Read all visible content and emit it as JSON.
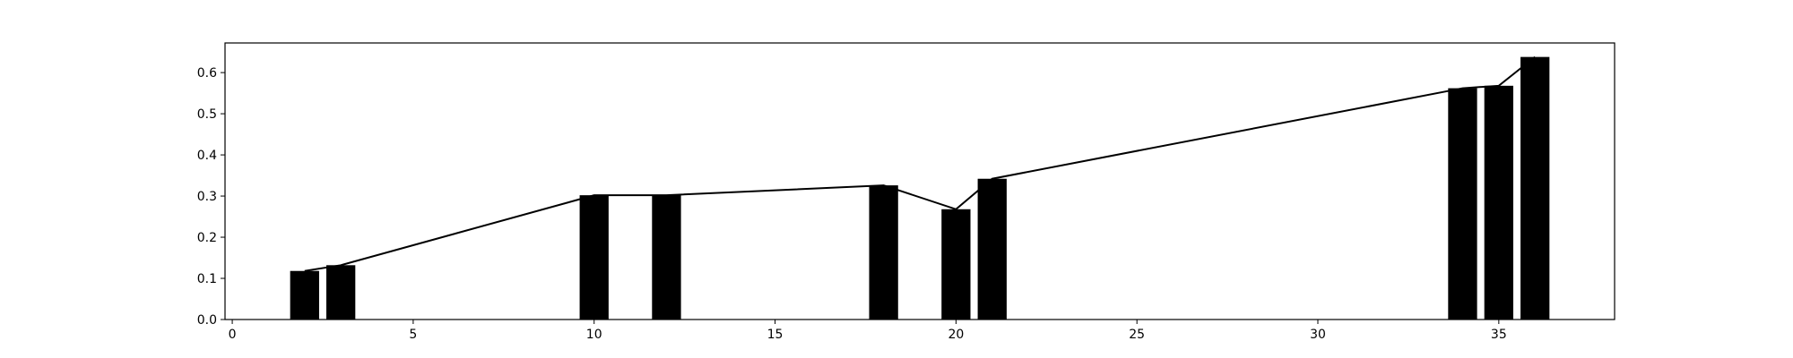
{
  "chart_data": {
    "type": "bar",
    "series": [
      {
        "x": [
          2,
          3,
          10,
          12,
          18,
          20,
          21,
          34,
          35,
          36
        ],
        "values": [
          0.118,
          0.132,
          0.302,
          0.302,
          0.326,
          0.268,
          0.342,
          0.562,
          0.568,
          0.638
        ]
      }
    ],
    "overlay_line": true,
    "xlim": [
      -0.2,
      38.2
    ],
    "ylim": [
      0,
      0.672
    ],
    "xticks": [
      0,
      5,
      10,
      15,
      20,
      25,
      30,
      35
    ],
    "yticks": [
      0.0,
      0.1,
      0.2,
      0.3,
      0.4,
      0.5,
      0.6
    ],
    "xtick_labels": [
      "0",
      "5",
      "10",
      "15",
      "20",
      "25",
      "30",
      "35"
    ],
    "ytick_labels": [
      "0.0",
      "0.1",
      "0.2",
      "0.3",
      "0.4",
      "0.5",
      "0.6"
    ],
    "title": "",
    "xlabel": "",
    "ylabel": "",
    "grid": false,
    "bar_color": "#000000",
    "line_color": "#000000"
  }
}
